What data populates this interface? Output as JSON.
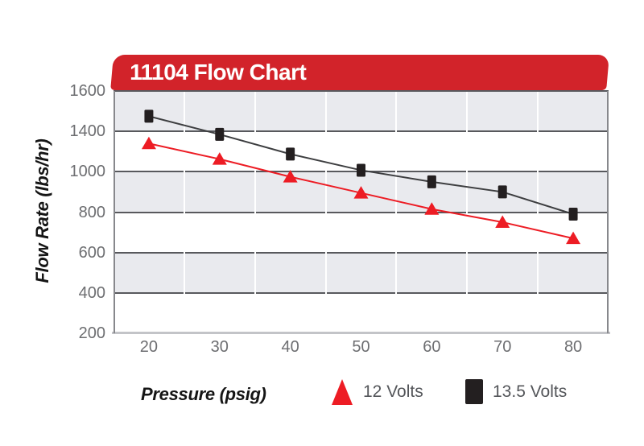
{
  "header": {
    "title": "11104 Flow Chart",
    "bg_color": "#d2232a",
    "text_color": "#ffffff"
  },
  "axes": {
    "y_title": "Flow Rate (lbs/hr)",
    "x_title": "Pressure (psig)"
  },
  "chart_data": {
    "type": "line",
    "title": "11104 Flow Chart",
    "xlabel": "Pressure (psig)",
    "ylabel": "Flow Rate (lbs/hr)",
    "categories": [
      "20",
      "30",
      "40",
      "50",
      "60",
      "70",
      "80"
    ],
    "y_tick_labels": [
      "1600",
      "1400",
      "1000",
      "800",
      "600",
      "400",
      "200"
    ],
    "series": [
      {
        "name": "12 Volts",
        "marker": "triangle",
        "color": "#ed1c24",
        "values": [
          1280,
          1125,
          975,
          895,
          815,
          750,
          670
        ]
      },
      {
        "name": "13.5 Volts",
        "marker": "square",
        "color": "#231f20",
        "line_color": "#3d3e40",
        "values": [
          1475,
          1370,
          1175,
          1015,
          950,
          900,
          790
        ]
      }
    ],
    "legend_position": "bottom",
    "grid": {
      "band_color": "#e9eaee",
      "line_color": "#58595d",
      "vline_color": "#ffffff",
      "bottom_axis_color": "#c3c4c8"
    }
  }
}
